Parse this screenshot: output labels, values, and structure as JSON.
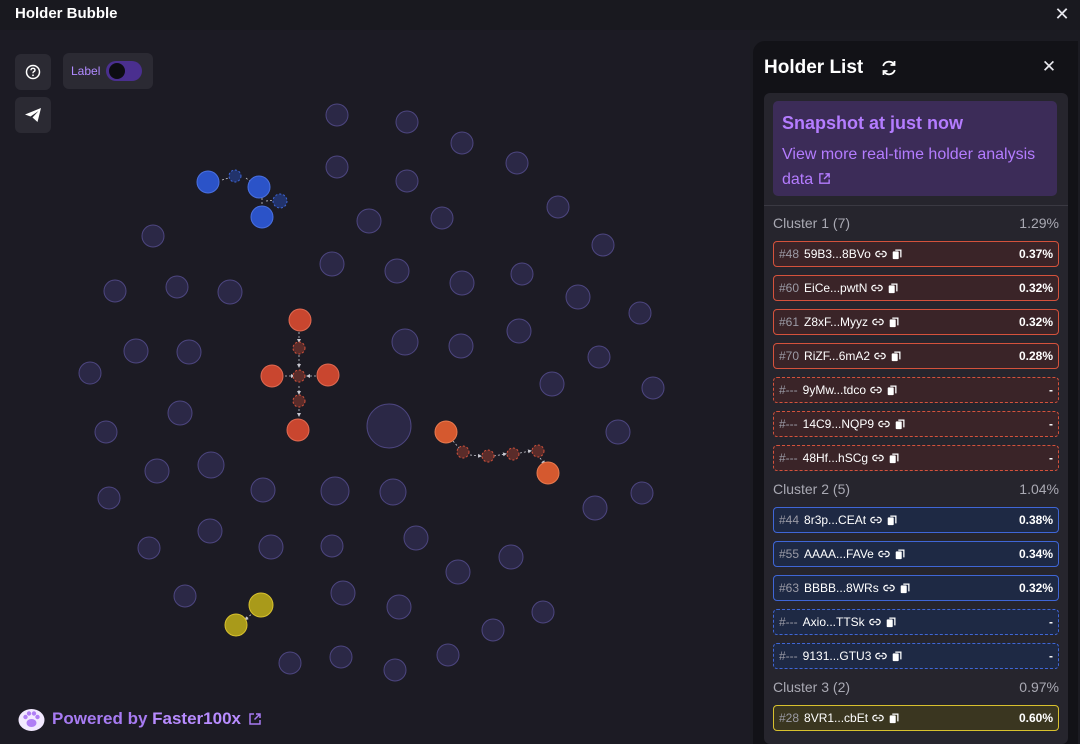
{
  "app": {
    "title": "Holder Bubble"
  },
  "toolbar": {
    "label_toggle": "Label",
    "help_icon": "question-circle-icon",
    "share_icon": "telegram-icon"
  },
  "footer": {
    "powered_prefix": "Powered by ",
    "brand": "Faster100x"
  },
  "panel": {
    "title": "Holder List",
    "snapshot_title": "Snapshot at just now",
    "snapshot_desc": "View more real-time holder analysis data"
  },
  "colors": {
    "accent": "#b47cff",
    "cluster1": "#d4523c",
    "cluster2": "#3f66d6",
    "cluster3": "#d8c12e",
    "bubble": "#2c2847"
  },
  "clusters": [
    {
      "name": "Cluster 1 (7)",
      "pct": "1.29%",
      "color": "red",
      "holders": [
        {
          "rank": "#48",
          "addr": "59B3...8BVo",
          "pct": "0.37%"
        },
        {
          "rank": "#60",
          "addr": "EiCe...pwtN",
          "pct": "0.32%"
        },
        {
          "rank": "#61",
          "addr": "Z8xF...Myyz",
          "pct": "0.32%"
        },
        {
          "rank": "#70",
          "addr": "RiZF...6mA2",
          "pct": "0.28%"
        },
        {
          "rank": "#---",
          "addr": "9yMw...tdco",
          "pct": "-"
        },
        {
          "rank": "#---",
          "addr": "14C9...NQP9",
          "pct": "-"
        },
        {
          "rank": "#---",
          "addr": "48Hf...hSCg",
          "pct": "-"
        }
      ]
    },
    {
      "name": "Cluster 2 (5)",
      "pct": "1.04%",
      "color": "blue",
      "holders": [
        {
          "rank": "#44",
          "addr": "8r3p...CEAt",
          "pct": "0.38%"
        },
        {
          "rank": "#55",
          "addr": "AAAA...FAVe",
          "pct": "0.34%"
        },
        {
          "rank": "#63",
          "addr": "BBBB...8WRs",
          "pct": "0.32%"
        },
        {
          "rank": "#---",
          "addr": "Axio...TTSk",
          "pct": "-"
        },
        {
          "rank": "#---",
          "addr": "9131...GTU3",
          "pct": "-"
        }
      ]
    },
    {
      "name": "Cluster 3 (2)",
      "pct": "0.97%",
      "color": "yellow",
      "holders": [
        {
          "rank": "#28",
          "addr": "8VR1...cbEt",
          "pct": "0.60%"
        }
      ]
    }
  ]
}
